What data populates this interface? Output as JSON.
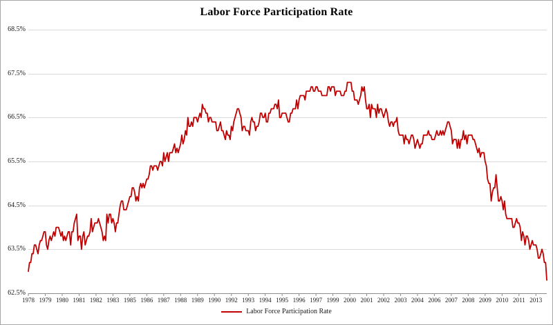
{
  "chart_data": {
    "type": "line",
    "title": "Labor Force Participation Rate",
    "xlabel": "",
    "ylabel": "",
    "ylim": [
      62.5,
      68.5
    ],
    "grid": "horizontal",
    "legend_position": "bottom",
    "x_start": "1978-01",
    "x_end": "2013-10",
    "frequency": "monthly",
    "x_tick_interval_months": 14,
    "y_tick_labels": [
      "68.5%",
      "67.5%",
      "66.5%",
      "65.5%",
      "64.5%",
      "63.5%",
      "62.5%"
    ],
    "x_tick_labels": [
      "1978",
      "1979",
      "1980",
      "1981",
      "1982",
      "1983",
      "1985",
      "1986",
      "1987",
      "1988",
      "1989",
      "1990",
      "1992",
      "1993",
      "1994",
      "1995",
      "1996",
      "1997",
      "1999",
      "2000",
      "2001",
      "2002",
      "2003",
      "2004",
      "2006",
      "2007",
      "2008",
      "2009",
      "2010",
      "2011",
      "2013"
    ],
    "colors": {
      "line": "#c00000",
      "grid": "#d9d9d9",
      "axis": "#8c8c8c",
      "border": "#a6a6a6",
      "background": "#ffffff",
      "text": "#1a1a1a"
    },
    "series": [
      {
        "name": "Labor Force Participation Rate",
        "color": "#c00000",
        "values": [
          63.0,
          63.2,
          63.2,
          63.4,
          63.4,
          63.6,
          63.6,
          63.5,
          63.4,
          63.6,
          63.7,
          63.7,
          63.8,
          63.9,
          63.9,
          63.6,
          63.5,
          63.7,
          63.8,
          63.7,
          63.8,
          63.9,
          63.8,
          64.0,
          64.0,
          64.0,
          63.9,
          63.8,
          63.9,
          63.7,
          63.8,
          63.7,
          63.8,
          63.9,
          63.9,
          63.6,
          63.9,
          63.9,
          64.1,
          64.2,
          64.3,
          63.7,
          63.8,
          63.8,
          63.5,
          63.8,
          63.9,
          63.6,
          63.7,
          63.8,
          63.8,
          63.9,
          64.2,
          63.9,
          64.0,
          64.1,
          64.1,
          64.1,
          64.2,
          64.1,
          64.0,
          63.9,
          63.7,
          63.8,
          63.7,
          64.3,
          64.1,
          64.3,
          64.3,
          64.1,
          64.2,
          64.1,
          63.9,
          64.1,
          64.1,
          64.3,
          64.5,
          64.6,
          64.6,
          64.4,
          64.4,
          64.4,
          64.5,
          64.6,
          64.7,
          64.7,
          64.9,
          64.9,
          64.8,
          64.6,
          64.7,
          64.6,
          64.9,
          65.0,
          64.9,
          65.0,
          64.9,
          65.0,
          65.1,
          65.1,
          65.2,
          65.4,
          65.4,
          65.3,
          65.4,
          65.4,
          65.4,
          65.3,
          65.4,
          65.5,
          65.5,
          65.4,
          65.7,
          65.5,
          65.6,
          65.7,
          65.5,
          65.7,
          65.7,
          65.7,
          65.8,
          65.9,
          65.7,
          65.8,
          65.7,
          65.8,
          65.9,
          66.1,
          65.9,
          66.0,
          66.2,
          66.1,
          66.5,
          66.3,
          66.3,
          66.4,
          66.3,
          66.5,
          66.5,
          66.5,
          66.4,
          66.5,
          66.6,
          66.5,
          66.8,
          66.7,
          66.7,
          66.6,
          66.6,
          66.4,
          66.5,
          66.5,
          66.4,
          66.4,
          66.4,
          66.4,
          66.2,
          66.2,
          66.3,
          66.4,
          66.2,
          66.2,
          66.1,
          66.0,
          66.2,
          66.1,
          66.1,
          66.0,
          66.3,
          66.2,
          66.4,
          66.5,
          66.6,
          66.7,
          66.7,
          66.6,
          66.5,
          66.2,
          66.3,
          66.3,
          66.2,
          66.2,
          66.2,
          66.1,
          66.4,
          66.5,
          66.4,
          66.4,
          66.2,
          66.3,
          66.3,
          66.4,
          66.6,
          66.6,
          66.5,
          66.5,
          66.6,
          66.4,
          66.4,
          66.6,
          66.6,
          66.7,
          66.7,
          66.7,
          66.8,
          66.8,
          66.7,
          66.9,
          66.5,
          66.5,
          66.6,
          66.6,
          66.6,
          66.6,
          66.5,
          66.4,
          66.4,
          66.6,
          66.6,
          66.7,
          66.7,
          66.7,
          66.9,
          66.7,
          66.9,
          67.0,
          67.0,
          67.0,
          67.0,
          66.9,
          67.1,
          67.1,
          67.1,
          67.1,
          67.2,
          67.2,
          67.1,
          67.1,
          67.2,
          67.2,
          67.1,
          67.1,
          67.1,
          67.0,
          67.0,
          67.0,
          67.0,
          67.0,
          67.2,
          67.2,
          67.1,
          67.2,
          67.2,
          67.2,
          67.0,
          67.1,
          67.1,
          67.1,
          67.1,
          67.0,
          67.0,
          67.0,
          67.1,
          67.1,
          67.3,
          67.3,
          67.3,
          67.3,
          67.1,
          67.1,
          66.9,
          66.9,
          66.9,
          66.8,
          66.9,
          67.0,
          67.2,
          67.1,
          67.2,
          66.9,
          66.7,
          66.7,
          66.8,
          66.5,
          66.8,
          66.7,
          66.7,
          66.7,
          66.5,
          66.8,
          66.6,
          66.7,
          66.7,
          66.6,
          66.5,
          66.6,
          66.7,
          66.6,
          66.4,
          66.3,
          66.4,
          66.4,
          66.3,
          66.4,
          66.4,
          66.5,
          66.2,
          66.1,
          66.1,
          66.1,
          66.1,
          65.9,
          66.1,
          66.0,
          66.0,
          65.9,
          66.0,
          66.1,
          66.1,
          66.0,
          65.8,
          65.9,
          66.0,
          65.9,
          65.8,
          65.9,
          65.9,
          66.1,
          66.1,
          66.1,
          66.1,
          66.2,
          66.1,
          66.1,
          66.0,
          66.0,
          66.0,
          66.1,
          66.2,
          66.1,
          66.1,
          66.2,
          66.1,
          66.2,
          66.1,
          66.2,
          66.3,
          66.4,
          66.4,
          66.3,
          66.2,
          65.9,
          66.0,
          66.0,
          66.0,
          65.8,
          66.0,
          65.8,
          66.0,
          66.0,
          66.2,
          66.0,
          66.1,
          65.9,
          66.1,
          66.1,
          66.1,
          66.1,
          66.0,
          66.0,
          65.9,
          65.8,
          65.7,
          65.8,
          65.6,
          65.7,
          65.7,
          65.7,
          65.5,
          65.4,
          65.1,
          65.0,
          65.0,
          64.6,
          64.8,
          64.9,
          64.9,
          65.2,
          64.9,
          64.6,
          64.6,
          64.7,
          64.6,
          64.4,
          64.6,
          64.3,
          64.2,
          64.2,
          64.2,
          64.2,
          64.2,
          64.0,
          64.0,
          64.1,
          64.2,
          64.1,
          64.1,
          64.0,
          63.7,
          63.9,
          63.8,
          63.6,
          63.8,
          63.8,
          63.7,
          63.5,
          63.6,
          63.7,
          63.6,
          63.6,
          63.6,
          63.5,
          63.3,
          63.3,
          63.4,
          63.5,
          63.4,
          63.2,
          63.2,
          62.8
        ]
      }
    ]
  }
}
